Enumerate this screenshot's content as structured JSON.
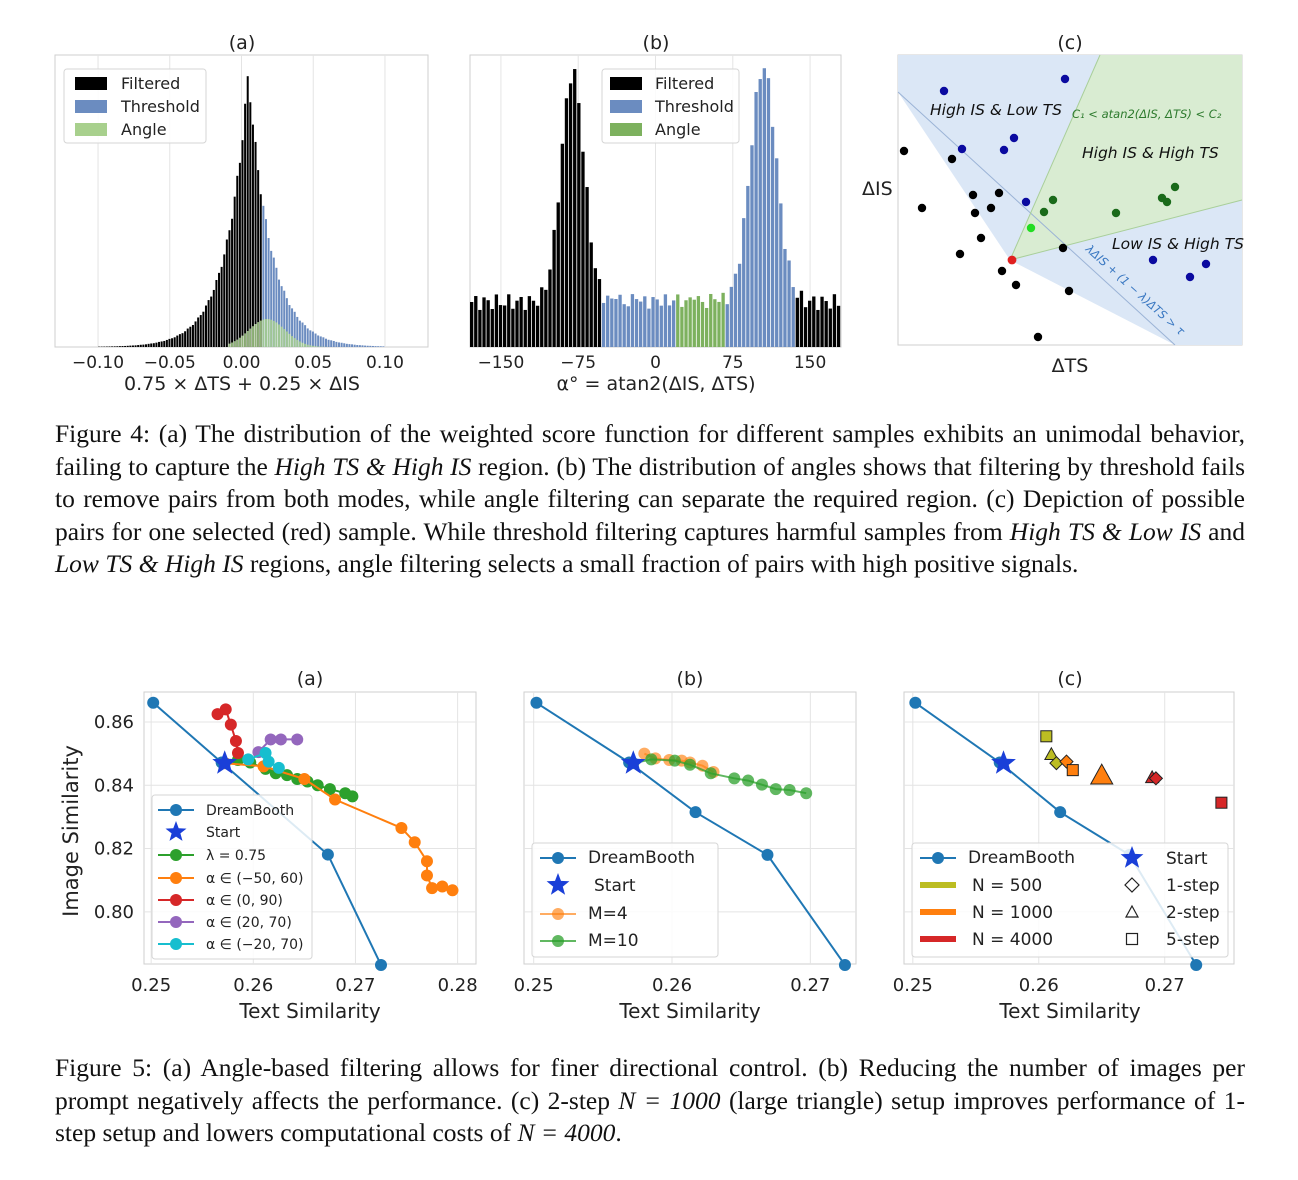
{
  "figure4": {
    "a": {
      "panel_label": "(a)",
      "xlabel": "0.75 × ΔTS + 0.25 × ΔIS",
      "xticks": [
        "−0.10",
        "−0.05",
        "0.00",
        "0.05",
        "0.10"
      ],
      "legend": [
        "Filtered",
        "Threshold",
        "Angle"
      ]
    },
    "b": {
      "panel_label": "(b)",
      "xlabel": "α° = atan2(ΔIS, ΔTS)",
      "xticks": [
        "−150",
        "−75",
        "0",
        "75",
        "150"
      ],
      "legend": [
        "Filtered",
        "Threshold",
        "Angle"
      ]
    },
    "c": {
      "panel_label": "(c)",
      "xlabel": "ΔTS",
      "ylabel": "ΔIS",
      "regions": [
        "High IS & Low TS",
        "High IS & High TS",
        "Low IS & High TS"
      ],
      "angle_condition": "C₁ < atan2(ΔIS, ΔTS) < C₂",
      "threshold_condition": "λΔIS + (1 − λ)ΔTS > τ"
    },
    "caption": {
      "p1": "Figure 4: (a) The distribution of the weighted score function for different samples exhibits an unimodal behavior, failing to capture the ",
      "p1_it": "High TS & High IS",
      "p2": " region. (b) The distribution of angles shows that filtering by threshold fails to remove pairs from both modes, while angle filtering can separate the required region. (c) Depiction of possible pairs for one selected (red) sample. While threshold filtering captures harmful samples from ",
      "p2_it": "High TS & Low IS",
      "p3": " and ",
      "p3_it": "Low TS & High IS",
      "p4": " regions, angle filtering selects a small fraction of pairs with high positive signals."
    }
  },
  "figure5": {
    "ylabel": "Image Similarity",
    "xlabel": "Text Similarity",
    "yticks": [
      "0.80",
      "0.82",
      "0.84",
      "0.86"
    ],
    "a": {
      "panel_label": "(a)",
      "xticks": [
        "0.25",
        "0.26",
        "0.27",
        "0.28"
      ],
      "legend": [
        "DreamBooth",
        "Start",
        "λ = 0.75",
        "α ∈ (−50, 60)",
        "α ∈ (0, 90)",
        "α ∈ (20, 70)",
        "α ∈ (−20, 70)"
      ]
    },
    "b": {
      "panel_label": "(b)",
      "xticks": [
        "0.25",
        "0.26",
        "0.27"
      ],
      "legend": [
        "DreamBooth",
        "Start",
        "M=4",
        "M=10"
      ]
    },
    "c": {
      "panel_label": "(c)",
      "xticks": [
        "0.25",
        "0.26",
        "0.27"
      ],
      "legend": [
        "DreamBooth",
        "Start",
        "N = 500",
        "1-step",
        "N = 1000",
        "2-step",
        "N = 4000",
        "5-step"
      ]
    },
    "caption": {
      "p1": "Figure 5: (a) Angle-based filtering allows for finer directional control. (b) Reducing the number of images per prompt negatively affects the performance. (c) 2-step ",
      "m1": "N = 1000",
      "p2": " (large triangle) setup improves performance of 1-step setup and lowers computational costs of ",
      "m2": "N = 4000",
      "p3": "."
    }
  },
  "colors": {
    "filtered": "#000000",
    "threshold": "#6b8cc0",
    "angle": "#a8d08d",
    "angle_dark": "#7db15e",
    "dreambooth": "#1f77b4",
    "start": "#1a3fd8",
    "green": "#2ca02c",
    "orange": "#ff7f0e",
    "red": "#d62728",
    "purple": "#9467bd",
    "cyan": "#17becf",
    "olive": "#bcbd22"
  },
  "chart_data": [
    {
      "id": "fig4a",
      "type": "bar",
      "title": "(a)",
      "xlabel": "0.75 × ΔTS + 0.25 × ΔIS",
      "xlim": [
        -0.13,
        0.13
      ],
      "series": [
        {
          "name": "Filtered",
          "kind": "histogram",
          "peak_x": 0.005,
          "spread": 0.024
        },
        {
          "name": "Threshold",
          "kind": "histogram",
          "from_x": 0.015,
          "peak_x": 0.005,
          "spread": 0.024
        },
        {
          "name": "Angle",
          "kind": "histogram",
          "peak_x": 0.018,
          "spread": 0.018
        }
      ]
    },
    {
      "id": "fig4b",
      "type": "bar",
      "title": "(b)",
      "xlabel": "α° = atan2(ΔIS, ΔTS)",
      "xlim": [
        -180,
        180
      ],
      "series": [
        {
          "name": "Filtered",
          "kind": "histogram",
          "modes_deg": [
            -80,
            100
          ]
        },
        {
          "name": "Threshold",
          "kind": "histogram",
          "ranges_deg": [
            [
              -50,
              20
            ],
            [
              70,
              135
            ]
          ]
        },
        {
          "name": "Angle",
          "kind": "histogram",
          "ranges_deg": [
            [
              20,
              70
            ]
          ]
        }
      ]
    },
    {
      "id": "fig5a",
      "type": "line",
      "title": "(a)",
      "xlabel": "Text Similarity",
      "ylabel": "Image Similarity",
      "xlim": [
        0.2493,
        0.2818
      ],
      "ylim": [
        0.7835,
        0.8695
      ],
      "series": [
        {
          "name": "DreamBooth",
          "points": [
            [
              0.2502,
              0.8661
            ],
            [
              0.2569,
              0.8472
            ],
            [
              0.2673,
              0.8181
            ],
            [
              0.2725,
              0.7832
            ]
          ]
        },
        {
          "name": "Start",
          "points": [
            [
              0.2572,
              0.847
            ]
          ]
        },
        {
          "name": "λ = 0.75",
          "points": [
            [
              0.2572,
              0.847
            ],
            [
              0.2585,
              0.848
            ],
            [
              0.2597,
              0.8472
            ],
            [
              0.2612,
              0.8452
            ],
            [
              0.2622,
              0.8438
            ],
            [
              0.2633,
              0.8432
            ],
            [
              0.2643,
              0.842
            ],
            [
              0.2653,
              0.8412
            ],
            [
              0.2663,
              0.84
            ],
            [
              0.2675,
              0.8388
            ],
            [
              0.269,
              0.8375
            ],
            [
              0.2697,
              0.8365
            ]
          ]
        },
        {
          "name": "α ∈ (−50, 60)",
          "points": [
            [
              0.2572,
              0.847
            ],
            [
              0.261,
              0.846
            ],
            [
              0.265,
              0.842
            ],
            [
              0.268,
              0.8355
            ],
            [
              0.2745,
              0.8265
            ],
            [
              0.2758,
              0.822
            ],
            [
              0.277,
              0.816
            ],
            [
              0.277,
              0.8115
            ],
            [
              0.2775,
              0.8075
            ],
            [
              0.2785,
              0.808
            ],
            [
              0.2795,
              0.8068
            ]
          ]
        },
        {
          "name": "α ∈ (0, 90)",
          "points": [
            [
              0.2565,
              0.8625
            ],
            [
              0.2573,
              0.864
            ],
            [
              0.2578,
              0.8592
            ],
            [
              0.2583,
              0.854
            ],
            [
              0.2585,
              0.8502
            ]
          ]
        },
        {
          "name": "α ∈ (20, 70)",
          "points": [
            [
              0.2605,
              0.8505
            ],
            [
              0.2617,
              0.8545
            ],
            [
              0.2627,
              0.8545
            ],
            [
              0.2643,
              0.8545
            ]
          ]
        },
        {
          "name": "α ∈ (−20, 70)",
          "points": [
            [
              0.2595,
              0.8482
            ],
            [
              0.2612,
              0.8502
            ],
            [
              0.2615,
              0.8475
            ],
            [
              0.2625,
              0.8455
            ]
          ]
        }
      ]
    },
    {
      "id": "fig5b",
      "type": "line",
      "title": "(b)",
      "xlabel": "Text Similarity",
      "ylabel": "Image Similarity",
      "xlim": [
        0.2493,
        0.2733
      ],
      "ylim": [
        0.7835,
        0.8695
      ],
      "series": [
        {
          "name": "DreamBooth",
          "points": [
            [
              0.2502,
              0.8661
            ],
            [
              0.2569,
              0.8472
            ],
            [
              0.2617,
              0.8315
            ],
            [
              0.2669,
              0.818
            ],
            [
              0.2725,
              0.7832
            ]
          ]
        },
        {
          "name": "Start",
          "points": [
            [
              0.2572,
              0.847
            ]
          ]
        },
        {
          "name": "M=4",
          "points": [
            [
              0.258,
              0.85
            ],
            [
              0.2588,
              0.8485
            ],
            [
              0.2598,
              0.848
            ],
            [
              0.2607,
              0.8478
            ],
            [
              0.2613,
              0.8472
            ],
            [
              0.2622,
              0.8462
            ],
            [
              0.263,
              0.8442
            ]
          ]
        },
        {
          "name": "M=10",
          "points": [
            [
              0.2572,
              0.847
            ],
            [
              0.2585,
              0.8482
            ],
            [
              0.2602,
              0.8478
            ],
            [
              0.2613,
              0.8465
            ],
            [
              0.2628,
              0.8438
            ],
            [
              0.2645,
              0.8422
            ],
            [
              0.2655,
              0.8415
            ],
            [
              0.2665,
              0.8402
            ],
            [
              0.2675,
              0.8388
            ],
            [
              0.2685,
              0.8385
            ],
            [
              0.2697,
              0.8375
            ]
          ]
        }
      ]
    },
    {
      "id": "fig5c",
      "type": "scatter",
      "title": "(c)",
      "xlabel": "Text Similarity",
      "ylabel": "Image Similarity",
      "xlim": [
        0.2493,
        0.2755
      ],
      "ylim": [
        0.7835,
        0.8695
      ],
      "series": [
        {
          "name": "DreamBooth",
          "points": [
            [
              0.2502,
              0.8661
            ],
            [
              0.2569,
              0.8472
            ],
            [
              0.2617,
              0.8315
            ],
            [
              0.2672,
              0.818
            ],
            [
              0.2725,
              0.7832
            ]
          ]
        },
        {
          "name": "Start",
          "points": [
            [
              0.2572,
              0.847
            ]
          ]
        },
        {
          "name": "N = 500",
          "color": "olive",
          "points": [
            {
              "x": 0.2606,
              "y": 0.8555,
              "step": "5-step"
            },
            {
              "x": 0.261,
              "y": 0.8498,
              "step": "2-step"
            },
            {
              "x": 0.2614,
              "y": 0.847,
              "step": "1-step"
            }
          ]
        },
        {
          "name": "N = 1000",
          "color": "orange",
          "points": [
            {
              "x": 0.2622,
              "y": 0.8475,
              "step": "1-step"
            },
            {
              "x": 0.2627,
              "y": 0.8448,
              "step": "5-step"
            },
            {
              "x": 0.265,
              "y": 0.8432,
              "step": "2-step",
              "large": true
            }
          ]
        },
        {
          "name": "N = 4000",
          "color": "red",
          "points": [
            {
              "x": 0.269,
              "y": 0.8425,
              "step": "2-step"
            },
            {
              "x": 0.2693,
              "y": 0.8422,
              "step": "1-step"
            },
            {
              "x": 0.2745,
              "y": 0.8345,
              "step": "5-step"
            }
          ]
        }
      ]
    }
  ]
}
